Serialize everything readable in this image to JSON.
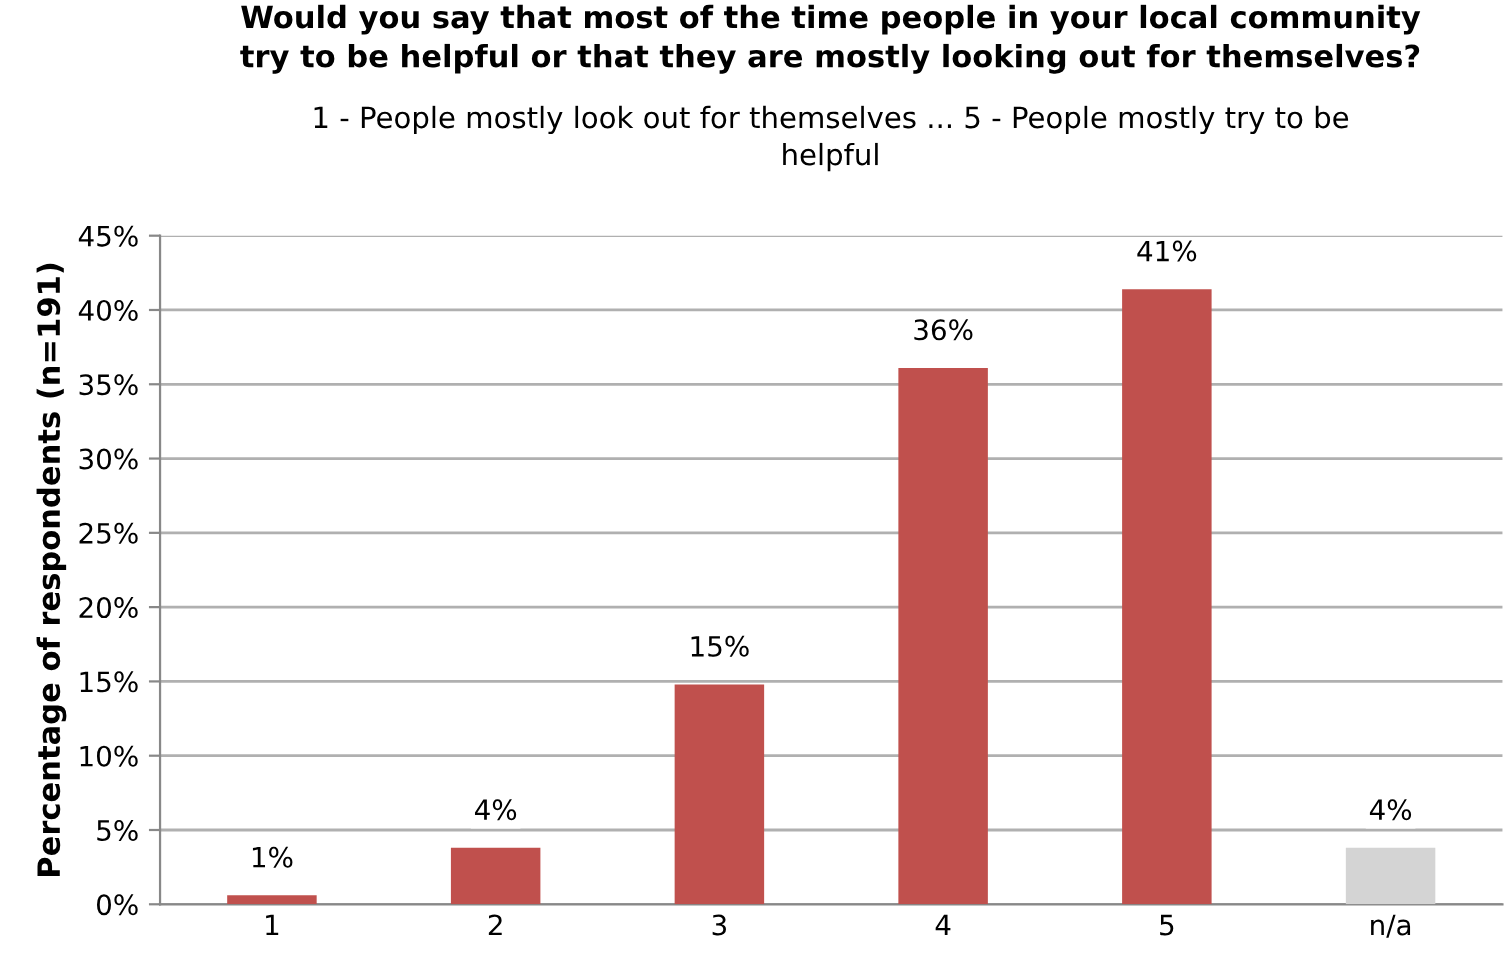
{
  "chart_data": {
    "type": "bar",
    "title": "Would you say that most of the time people in your local community\ntry to be helpful or that they are mostly looking out for themselves?",
    "subtitle": "1 - People mostly look out for themselves ... 5 - People mostly try to be\nhelpful",
    "ylabel": "Percentage of respondents (n=191)",
    "categories": [
      "1",
      "2",
      "3",
      "4",
      "5",
      "n/a"
    ],
    "values": [
      0.6,
      3.8,
      14.8,
      36.1,
      41.4,
      3.8
    ],
    "colors": [
      "#c0504d",
      "#c0504d",
      "#c0504d",
      "#c0504d",
      "#c0504d",
      "#d4d4d4"
    ],
    "value_labels": [
      "1%",
      "4%",
      "15%",
      "36%",
      "41%",
      "4%"
    ],
    "ylim": [
      0,
      45
    ],
    "yticks": [
      {
        "value": 0,
        "label": "0%"
      },
      {
        "value": 5,
        "label": "5%"
      },
      {
        "value": 10,
        "label": "10%"
      },
      {
        "value": 15,
        "label": "15%"
      },
      {
        "value": 20,
        "label": "20%"
      },
      {
        "value": 25,
        "label": "25%"
      },
      {
        "value": 30,
        "label": "30%"
      },
      {
        "value": 35,
        "label": "35%"
      },
      {
        "value": 40,
        "label": "40%"
      },
      {
        "value": 45,
        "label": "45%"
      }
    ],
    "grid": "y",
    "legend": false
  }
}
